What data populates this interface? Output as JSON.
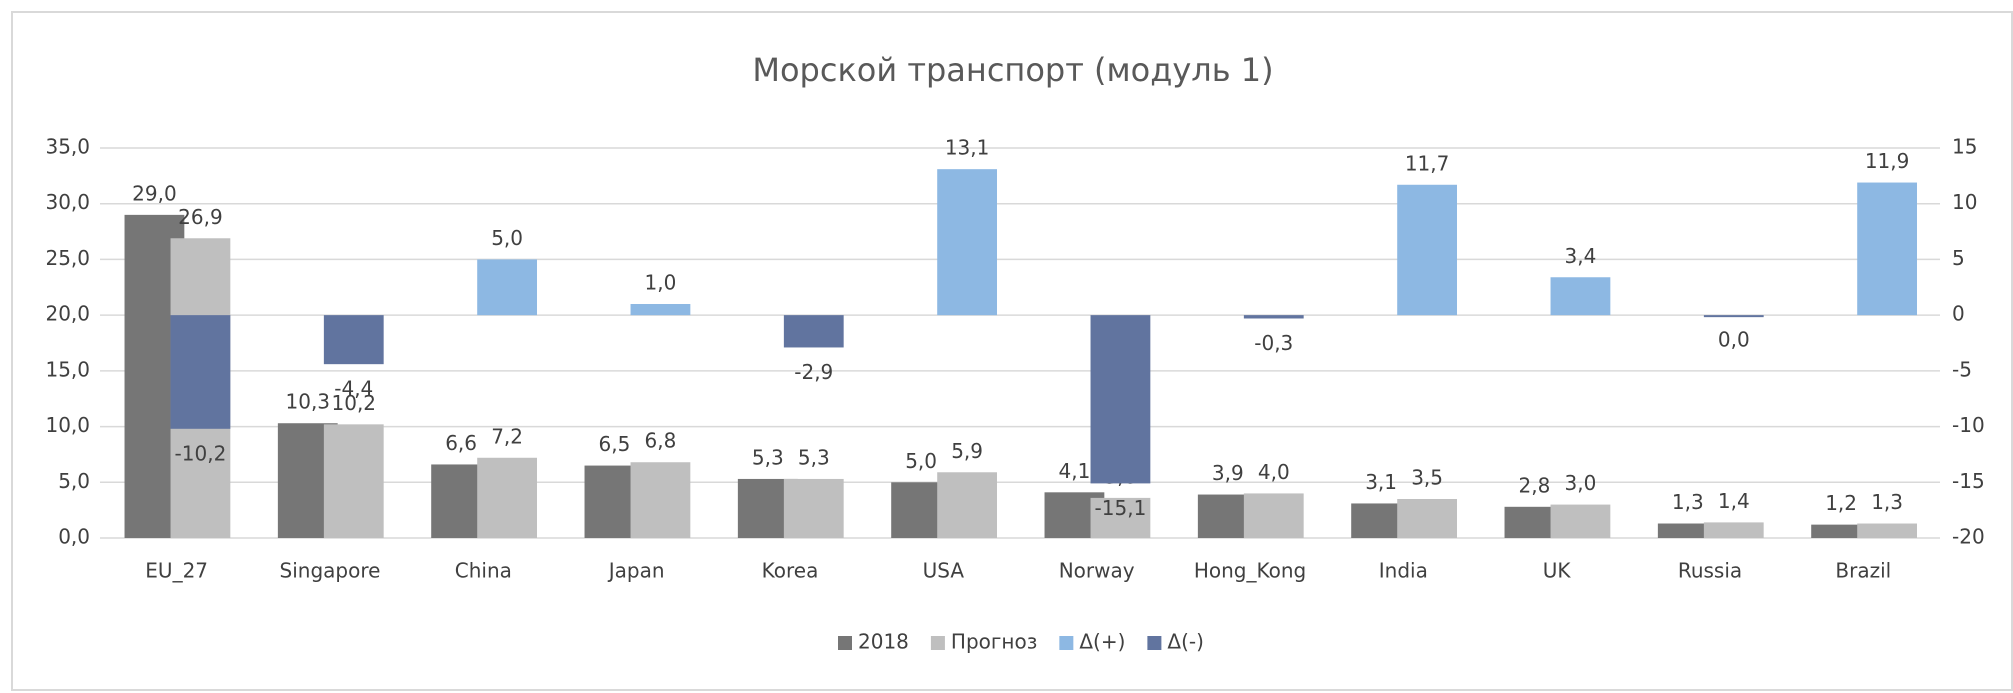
{
  "chart_data": {
    "type": "bar",
    "title": "Морской транспорт (модуль 1)",
    "categories": [
      "EU_27",
      "Singapore",
      "China",
      "Japan",
      "Korea",
      "USA",
      "Norway",
      "Hong_Kong",
      "India",
      "UK",
      "Russia",
      "Brazil"
    ],
    "series": [
      {
        "name": "2018",
        "color": "#767676",
        "axis": "y",
        "values": [
          29.0,
          10.3,
          6.6,
          6.5,
          5.3,
          5.0,
          4.1,
          3.9,
          3.1,
          2.8,
          1.3,
          1.2
        ],
        "value_labels": [
          "29,0",
          "10,3",
          "6,6",
          "6,5",
          "5,3",
          "5,0",
          "4,1",
          "3,9",
          "3,1",
          "2,8",
          "1,3",
          "1,2"
        ]
      },
      {
        "name": "Прогноз",
        "color": "#bfbfbf",
        "axis": "y",
        "values": [
          26.9,
          10.2,
          7.2,
          6.8,
          5.3,
          5.9,
          3.6,
          4.0,
          3.5,
          3.0,
          1.4,
          1.3
        ],
        "value_labels": [
          "26,9",
          "10,2",
          "7,2",
          "6,8",
          "5,3",
          "5,9",
          "3,6",
          "4,0",
          "3,5",
          "3,0",
          "1,4",
          "1,3"
        ]
      },
      {
        "name": "Δ(+)",
        "color": "#8db8e3",
        "axis": "y2",
        "values": [
          null,
          null,
          5.0,
          1.0,
          null,
          13.1,
          null,
          null,
          11.7,
          3.4,
          null,
          11.9
        ],
        "value_labels": [
          null,
          null,
          "5,0",
          "1,0",
          null,
          "13,1",
          null,
          null,
          "11,7",
          "3,4",
          null,
          "11,9"
        ]
      },
      {
        "name": "Δ(-)",
        "color": "#61749f",
        "axis": "y2",
        "values": [
          -10.2,
          -4.4,
          null,
          null,
          -2.9,
          null,
          -15.1,
          -0.3,
          null,
          null,
          0.0,
          null
        ],
        "value_labels": [
          "-10,2",
          "-4,4",
          null,
          null,
          "-2,9",
          null,
          "-15,1",
          "-0,3",
          null,
          null,
          "0,0",
          null
        ]
      }
    ],
    "ylim": [
      0,
      35
    ],
    "yticks": [
      {
        "value": 0,
        "label": "0,0"
      },
      {
        "value": 5,
        "label": "5,0"
      },
      {
        "value": 10,
        "label": "10,0"
      },
      {
        "value": 15,
        "label": "15,0"
      },
      {
        "value": 20,
        "label": "20,0"
      },
      {
        "value": 25,
        "label": "25,0"
      },
      {
        "value": 30,
        "label": "30,0"
      },
      {
        "value": 35,
        "label": "35,0"
      }
    ],
    "y2lim": [
      -20,
      15
    ],
    "y2ticks": [
      -20,
      -15,
      -10,
      -5,
      0,
      5,
      10,
      15
    ],
    "grid": true,
    "legend": "bottom"
  }
}
